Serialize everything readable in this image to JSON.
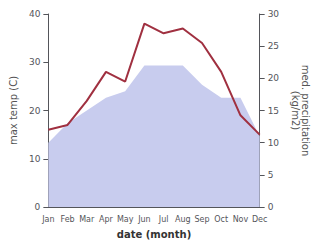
{
  "chart_data": {
    "type": "line",
    "xlabel": "date (month)",
    "ylabel": "max temp (C)",
    "y2label": "med. precipitation\n(kg/m2)",
    "categories": [
      "Jan",
      "Feb",
      "Mar",
      "Apr",
      "May",
      "Jun",
      "Jul",
      "Aug",
      "Sep",
      "Oct",
      "Nov",
      "Dec"
    ],
    "series": [
      {
        "type": "area",
        "color": "#c8ccee",
        "axis": "y2",
        "values": [
          10,
          13,
          15,
          17,
          18,
          22,
          22,
          22,
          19,
          17,
          17,
          11
        ]
      },
      {
        "type": "line",
        "color": "#a03040",
        "values": [
          16,
          17,
          22,
          28,
          26,
          38,
          36,
          37,
          34,
          28,
          19,
          15
        ]
      }
    ],
    "ylim": [
      0,
      40
    ],
    "yticks": [
      0,
      10,
      20,
      30,
      40
    ],
    "y2lim": [
      0,
      30
    ],
    "y2ticks": [
      0,
      5,
      10,
      15,
      20,
      25,
      30
    ],
    "grid": false
  }
}
